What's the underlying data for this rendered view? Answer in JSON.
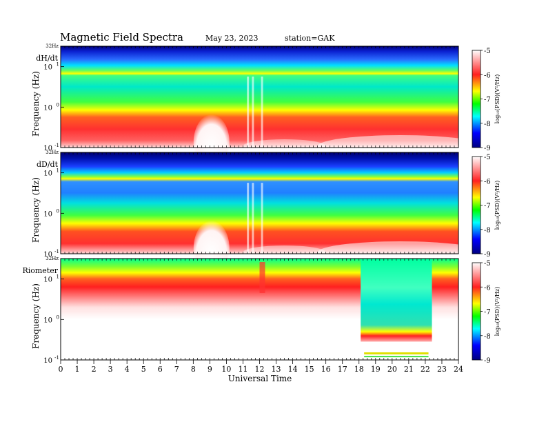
{
  "header": {
    "title": "Magnetic  Field  Spectra",
    "date": "May 23, 2023",
    "station": "station=GAK"
  },
  "chart_data": {
    "type": "heatmap",
    "xlabel": "Universal Time",
    "x_ticks": [
      0,
      1,
      2,
      3,
      4,
      5,
      6,
      7,
      8,
      9,
      10,
      11,
      12,
      13,
      14,
      15,
      16,
      17,
      18,
      19,
      20,
      21,
      22,
      23,
      24
    ],
    "xlim": [
      0,
      24
    ],
    "y_scale": "log",
    "y_ticks": [
      {
        "value": 0.1,
        "mantissa": "10",
        "exp": "-1"
      },
      {
        "value": 1,
        "mantissa": "10",
        "exp": "0"
      },
      {
        "value": 10,
        "mantissa": "10",
        "exp": "1"
      }
    ],
    "y_top_label": "32Hz",
    "ylim": [
      0.1,
      32
    ],
    "colorbar": {
      "label": "log₁₀(PSD)(V²/Hz)",
      "ticks": [
        "-5",
        "-6",
        "-7",
        "-8",
        "-9"
      ],
      "range": [
        -9,
        -5
      ],
      "colors": [
        "#ffffff",
        "#ff2020",
        "#ffff00",
        "#00ff00",
        "#00ffff",
        "#0000ff",
        "#000080"
      ]
    },
    "panels": [
      {
        "name": "dH/dt",
        "ylabel": "Frequency  (Hz)"
      },
      {
        "name": "dD/dt",
        "ylabel": "Frequency  (Hz)"
      },
      {
        "name": "Riometer",
        "ylabel": "Frequency  (Hz)"
      }
    ]
  }
}
